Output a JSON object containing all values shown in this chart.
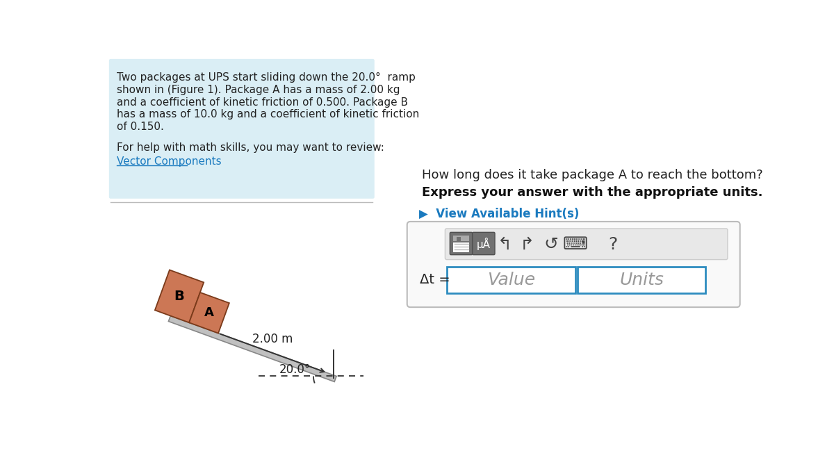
{
  "bg_color": "#ffffff",
  "left_panel_bg": "#daeef5",
  "problem_text_lines": [
    "Two packages at UPS start sliding down the 20.0°  ramp",
    "shown in (Figure 1). Package A has a mass of 2.00 kg",
    "and a coefficient of kinetic friction of 0.500. Package B",
    "has a mass of 10.0 kg and a coefficient of kinetic friction",
    "of 0.150."
  ],
  "help_text": "For help with math skills, you may want to review:",
  "link_text": "Vector Components",
  "question_text": "How long does it take package A to reach the bottom?",
  "bold_text": "Express your answer with the appropriate units.",
  "hint_text": "▶  View Available Hint(s)",
  "delta_t_label": "Δt =",
  "value_placeholder": "Value",
  "units_placeholder": "Units",
  "ramp_length_label": "2.00 m",
  "angle_label": "20.0°",
  "package_color": "#cc7755",
  "ramp_color": "#c0c0c0",
  "ramp_edge_color": "#888888",
  "text_color": "#222222",
  "link_color": "#1a7abf",
  "hint_color": "#1a7abf",
  "separator_color": "#bbbbbb",
  "input_border_color": "#2d8cbf",
  "input_bg": "#ffffff",
  "toolbar_bg": "#e4e4e4",
  "icon_dark": "#666666",
  "outer_box_color": "#bbbbbb"
}
